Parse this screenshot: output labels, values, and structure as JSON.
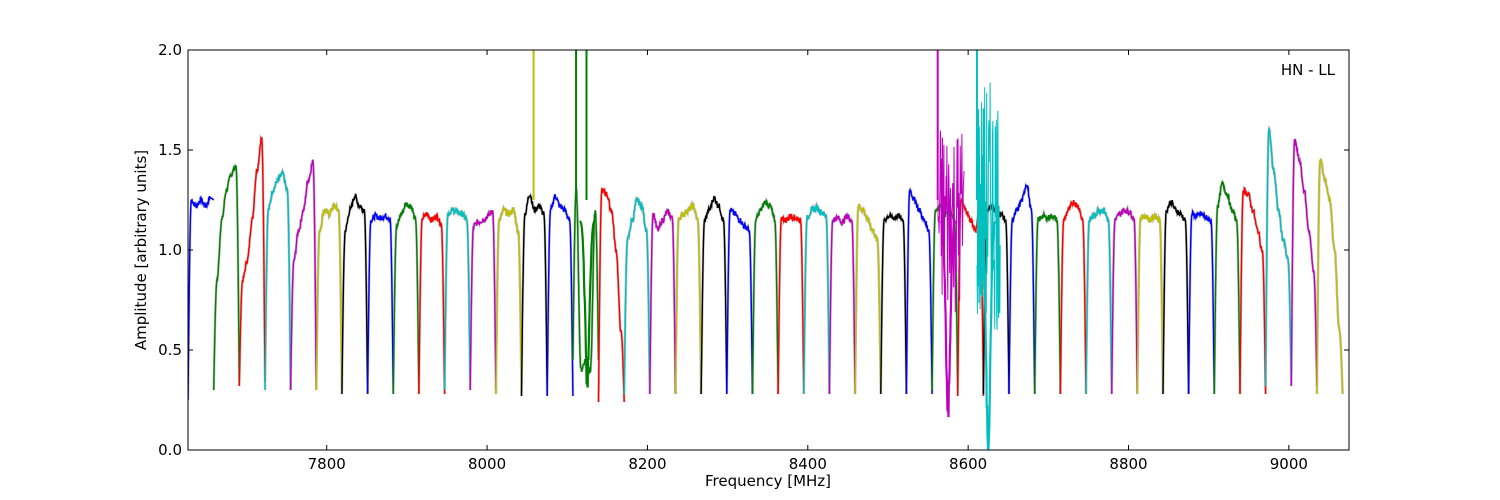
{
  "chart_data": {
    "type": "line",
    "title": "",
    "annotation": "HN - LL",
    "xlabel": "Frequency [MHz]",
    "ylabel": "Amplitude [arbitrary units]",
    "xlim": [
      7627,
      9075
    ],
    "ylim": [
      0.0,
      2.0
    ],
    "x_ticks": [
      7800,
      8000,
      8200,
      8400,
      8600,
      8800,
      9000
    ],
    "y_ticks": [
      0.0,
      0.5,
      1.0,
      1.5,
      2.0
    ],
    "x_tick_labels": [
      "7800",
      "8000",
      "8200",
      "8400",
      "8600",
      "8800",
      "9000"
    ],
    "y_tick_labels": [
      "0.0",
      "0.5",
      "1.0",
      "1.5",
      "2.0"
    ],
    "grid": false,
    "band_width_mhz": 32,
    "background_series_color": "#bfbfbf",
    "color_cycle": [
      "#0000ff",
      "#008000",
      "#ff0000",
      "#00bfbf",
      "#bf00bf",
      "#bfbf00",
      "#000000"
    ],
    "bands": [
      {
        "start": 7627,
        "shape": [
          0.25,
          1.25,
          1.22,
          1.25,
          1.22,
          1.26,
          1.25
        ],
        "color": "#0000ff"
      },
      {
        "start": 7659,
        "shape": [
          0.3,
          0.85,
          1.15,
          1.3,
          1.38,
          1.42,
          0.34
        ],
        "color": "#008000"
      },
      {
        "start": 7691,
        "shape": [
          0.32,
          0.85,
          0.95,
          1.15,
          1.4,
          1.56,
          0.34
        ],
        "color": "#ff0000"
      },
      {
        "start": 7723,
        "shape": [
          0.3,
          1.2,
          1.3,
          1.35,
          1.38,
          1.3,
          0.3
        ],
        "color": "#00bfbf"
      },
      {
        "start": 7755,
        "shape": [
          0.3,
          0.95,
          1.1,
          1.2,
          1.35,
          1.44,
          0.3
        ],
        "color": "#bf00bf"
      },
      {
        "start": 7787,
        "shape": [
          0.3,
          1.1,
          1.2,
          1.18,
          1.22,
          1.2,
          0.3
        ],
        "color": "#bfbf00"
      },
      {
        "start": 7819,
        "shape": [
          0.28,
          1.1,
          1.2,
          1.27,
          1.22,
          1.2,
          0.28
        ],
        "color": "#000000"
      },
      {
        "start": 7851,
        "shape": [
          0.28,
          1.15,
          1.17,
          1.16,
          1.17,
          1.16,
          0.28
        ],
        "color": "#0000ff"
      },
      {
        "start": 7883,
        "shape": [
          0.28,
          1.12,
          1.18,
          1.23,
          1.22,
          1.15,
          0.28
        ],
        "color": "#008000"
      },
      {
        "start": 7915,
        "shape": [
          0.28,
          1.16,
          1.18,
          1.15,
          1.17,
          1.13,
          0.28
        ],
        "color": "#ff0000"
      },
      {
        "start": 7947,
        "shape": [
          0.3,
          1.18,
          1.2,
          1.19,
          1.18,
          1.15,
          0.3
        ],
        "color": "#00bfbf"
      },
      {
        "start": 7979,
        "shape": [
          0.3,
          1.12,
          1.14,
          1.15,
          1.17,
          1.2,
          0.3
        ],
        "color": "#bf00bf"
      },
      {
        "start": 8011,
        "shape": [
          0.28,
          1.15,
          1.2,
          1.18,
          1.2,
          1.1,
          0.28
        ],
        "color": "#bfbf00"
      },
      {
        "start": 8043,
        "shape": [
          0.27,
          1.18,
          1.28,
          1.2,
          1.22,
          1.18,
          0.27
        ],
        "color": "#000000"
      },
      {
        "start": 8075,
        "shape": [
          0.27,
          1.2,
          1.27,
          1.22,
          1.2,
          1.15,
          0.27
        ],
        "color": "#0000ff"
      },
      {
        "start": 8107,
        "shape": [
          0.45,
          1.3,
          0.4,
          0.45,
          0.4,
          1.2,
          0.45
        ],
        "color": "#008000"
      },
      {
        "start": 8139,
        "shape": [
          0.24,
          1.3,
          1.28,
          1.2,
          1.0,
          0.6,
          0.24
        ],
        "color": "#ff0000"
      },
      {
        "start": 8171,
        "shape": [
          0.28,
          1.05,
          1.15,
          1.25,
          1.22,
          1.1,
          0.28
        ],
        "color": "#00bfbf"
      },
      {
        "start": 8203,
        "shape": [
          0.28,
          1.18,
          1.1,
          1.15,
          1.19,
          1.16,
          0.28
        ],
        "color": "#bf00bf"
      },
      {
        "start": 8235,
        "shape": [
          0.28,
          1.16,
          1.18,
          1.2,
          1.22,
          1.15,
          0.28
        ],
        "color": "#bfbf00"
      },
      {
        "start": 8267,
        "shape": [
          0.28,
          1.15,
          1.2,
          1.26,
          1.22,
          1.15,
          0.28
        ],
        "color": "#000000"
      },
      {
        "start": 8299,
        "shape": [
          0.28,
          1.2,
          1.18,
          1.15,
          1.12,
          1.1,
          0.28
        ],
        "color": "#0000ff"
      },
      {
        "start": 8331,
        "shape": [
          0.28,
          1.15,
          1.2,
          1.24,
          1.22,
          1.15,
          0.28
        ],
        "color": "#008000"
      },
      {
        "start": 8363,
        "shape": [
          0.28,
          1.16,
          1.15,
          1.17,
          1.16,
          1.15,
          0.28
        ],
        "color": "#ff0000"
      },
      {
        "start": 8395,
        "shape": [
          0.28,
          1.16,
          1.2,
          1.21,
          1.19,
          1.17,
          0.28
        ],
        "color": "#00bfbf"
      },
      {
        "start": 8427,
        "shape": [
          0.28,
          1.15,
          1.16,
          1.14,
          1.17,
          1.15,
          0.28
        ],
        "color": "#bf00bf"
      },
      {
        "start": 8459,
        "shape": [
          0.28,
          1.22,
          1.2,
          1.15,
          1.1,
          1.05,
          0.28
        ],
        "color": "#bfbf00"
      },
      {
        "start": 8491,
        "shape": [
          0.28,
          1.15,
          1.17,
          1.16,
          1.17,
          1.15,
          0.28
        ],
        "color": "#000000"
      },
      {
        "start": 8523,
        "shape": [
          0.28,
          1.3,
          1.25,
          1.2,
          1.15,
          1.1,
          0.28
        ],
        "color": "#0000ff"
      },
      {
        "start": 8555,
        "shape": [
          0.3,
          1.2,
          1.22,
          1.18,
          1.2,
          1.15,
          0.3
        ],
        "color": "#008000"
      },
      {
        "start": 8587,
        "shape": [
          0.27,
          1.25,
          1.2,
          1.15,
          1.1,
          1.2,
          0.27
        ],
        "color": "#ff0000"
      },
      {
        "start": 8619,
        "shape": [
          0.28,
          1.2,
          1.22,
          1.2,
          1.18,
          1.15,
          0.28
        ],
        "color": "#000000"
      },
      {
        "start": 8651,
        "shape": [
          0.28,
          1.15,
          1.2,
          1.25,
          1.33,
          1.2,
          0.28
        ],
        "color": "#0000ff"
      },
      {
        "start": 8683,
        "shape": [
          0.28,
          1.15,
          1.17,
          1.16,
          1.17,
          1.15,
          0.28
        ],
        "color": "#008000"
      },
      {
        "start": 8715,
        "shape": [
          0.28,
          1.15,
          1.2,
          1.24,
          1.22,
          1.15,
          0.28
        ],
        "color": "#ff0000"
      },
      {
        "start": 8747,
        "shape": [
          0.28,
          1.15,
          1.17,
          1.2,
          1.2,
          1.15,
          0.28
        ],
        "color": "#00bfbf"
      },
      {
        "start": 8779,
        "shape": [
          0.28,
          1.15,
          1.18,
          1.2,
          1.19,
          1.16,
          0.28
        ],
        "color": "#bf00bf"
      },
      {
        "start": 8811,
        "shape": [
          0.28,
          1.16,
          1.17,
          1.15,
          1.17,
          1.15,
          0.28
        ],
        "color": "#bfbf00"
      },
      {
        "start": 8843,
        "shape": [
          0.28,
          1.2,
          1.24,
          1.2,
          1.18,
          1.15,
          0.28
        ],
        "color": "#000000"
      },
      {
        "start": 8875,
        "shape": [
          0.28,
          1.18,
          1.17,
          1.18,
          1.16,
          1.15,
          0.28
        ],
        "color": "#0000ff"
      },
      {
        "start": 8907,
        "shape": [
          0.28,
          1.22,
          1.33,
          1.28,
          1.2,
          1.15,
          0.28
        ],
        "color": "#008000"
      },
      {
        "start": 8939,
        "shape": [
          0.28,
          1.3,
          1.28,
          1.2,
          1.1,
          1.0,
          0.28
        ],
        "color": "#ff0000"
      },
      {
        "start": 8971,
        "shape": [
          0.32,
          1.6,
          1.4,
          1.2,
          1.05,
          0.95,
          0.32
        ],
        "color": "#00bfbf"
      },
      {
        "start": 9003,
        "shape": [
          0.32,
          1.55,
          1.45,
          1.3,
          1.1,
          0.9,
          0.32
        ],
        "color": "#bf00bf"
      },
      {
        "start": 9035,
        "shape": [
          0.28,
          1.45,
          1.35,
          1.25,
          1.0,
          0.6,
          0.28
        ],
        "color": "#bfbf00"
      }
    ],
    "spikes": [
      {
        "x": 8058,
        "y": 2.0,
        "color": "#bfbf00"
      },
      {
        "x": 8111,
        "y": 2.0,
        "color": "#008000"
      },
      {
        "x": 8124,
        "y": 2.0,
        "color": "#008000"
      },
      {
        "x": 8562,
        "y": 2.0,
        "color": "#bf00bf"
      },
      {
        "x": 8611,
        "y": 2.0,
        "color": "#00bfbf"
      }
    ],
    "deep_dips": [
      {
        "x": 8125,
        "y": 0.36,
        "color": "#008000"
      },
      {
        "x": 8575,
        "y": 0.21,
        "color": "#bf00bf"
      },
      {
        "x": 8625,
        "y": 0.05,
        "color": "#00bfbf"
      }
    ],
    "bursts": [
      {
        "x0": 8562,
        "x1": 8595,
        "min": 0.25,
        "max": 1.65,
        "color": "#bf00bf"
      },
      {
        "x0": 8611,
        "x1": 8640,
        "min": 0.05,
        "max": 1.85,
        "color": "#00bfbf"
      }
    ]
  }
}
